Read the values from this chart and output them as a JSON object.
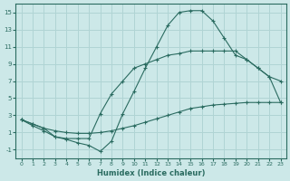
{
  "xlabel": "Humidex (Indice chaleur)",
  "ylabel": "",
  "background_color": "#cce8e8",
  "grid_color": "#b0d4d4",
  "line_color": "#2a6b60",
  "xlim": [
    -0.5,
    23.5
  ],
  "ylim": [
    -2,
    16
  ],
  "xticks": [
    0,
    1,
    2,
    3,
    4,
    5,
    6,
    7,
    8,
    9,
    10,
    11,
    12,
    13,
    14,
    15,
    16,
    17,
    18,
    19,
    20,
    21,
    22,
    23
  ],
  "yticks": [
    -1,
    1,
    3,
    5,
    7,
    9,
    11,
    13,
    15
  ],
  "line1_x": [
    0,
    1,
    2,
    3,
    4,
    5,
    6,
    7,
    8,
    9,
    10,
    11,
    12,
    13,
    14,
    15,
    16,
    17,
    18,
    19,
    20,
    21,
    22,
    23
  ],
  "line1_y": [
    2.5,
    2.0,
    1.5,
    1.2,
    1.0,
    0.9,
    0.9,
    1.0,
    1.2,
    1.5,
    1.8,
    2.2,
    2.6,
    3.0,
    3.4,
    3.8,
    4.0,
    4.2,
    4.3,
    4.4,
    4.5,
    4.5,
    4.5,
    4.5
  ],
  "line2_x": [
    0,
    1,
    2,
    3,
    4,
    5,
    6,
    7,
    8,
    9,
    10,
    11,
    12,
    13,
    14,
    15,
    16,
    17,
    18,
    19,
    20,
    21,
    22,
    23
  ],
  "line2_y": [
    2.5,
    2.0,
    1.5,
    0.5,
    0.3,
    0.3,
    0.3,
    3.2,
    5.5,
    7.0,
    8.5,
    9.0,
    9.5,
    10.0,
    10.2,
    10.5,
    10.5,
    10.5,
    10.5,
    10.5,
    9.5,
    8.5,
    7.5,
    4.5
  ],
  "line3_x": [
    0,
    1,
    2,
    3,
    4,
    5,
    6,
    7,
    8,
    9,
    10,
    11,
    12,
    13,
    14,
    15,
    16,
    17,
    18,
    19,
    20,
    21,
    22,
    23
  ],
  "line3_y": [
    2.5,
    1.8,
    1.2,
    0.5,
    0.2,
    -0.2,
    -0.5,
    -1.2,
    0.0,
    3.2,
    5.8,
    8.5,
    11.0,
    13.5,
    15.0,
    15.2,
    15.2,
    14.0,
    12.0,
    10.0,
    9.5,
    8.5,
    7.5,
    7.0
  ]
}
